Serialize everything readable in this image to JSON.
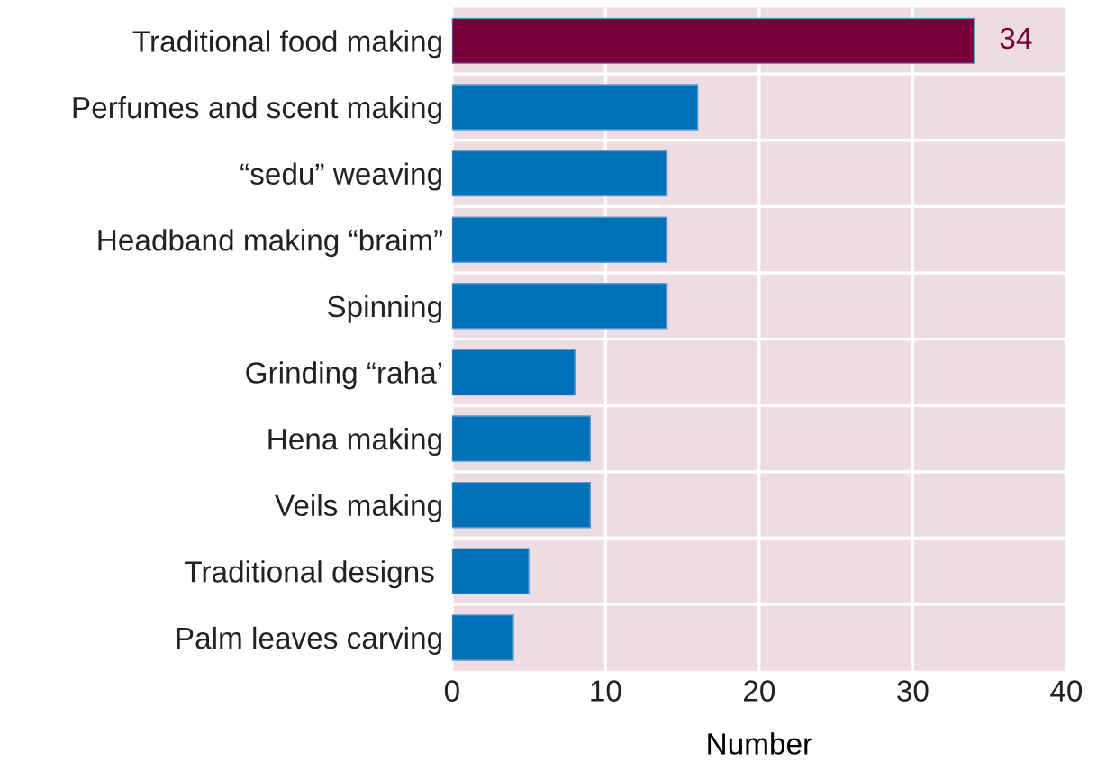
{
  "chart_data": {
    "type": "bar",
    "orientation": "horizontal",
    "xlabel": "Number",
    "categories": [
      "Traditional food making",
      "Perfumes and scent making",
      "“sedu” weaving",
      "Headband making “braim”",
      "Spinning",
      "Grinding “raha’",
      "Hena making",
      "Veils making",
      "Traditional designs ",
      "Palm leaves carving"
    ],
    "values": [
      34,
      16,
      14,
      14,
      14,
      8,
      9,
      9,
      5,
      4
    ],
    "colors": [
      "#7a003c",
      "#0070b8",
      "#0070b8",
      "#0070b8",
      "#0070b8",
      "#0070b8",
      "#0070b8",
      "#0070b8",
      "#0070b8",
      "#0070b8"
    ],
    "value_labels": [
      "34",
      null,
      null,
      null,
      null,
      null,
      null,
      null,
      null,
      null
    ],
    "xlim": [
      0,
      40
    ],
    "xticks": [
      0,
      10,
      20,
      30,
      40
    ],
    "grid": true
  }
}
